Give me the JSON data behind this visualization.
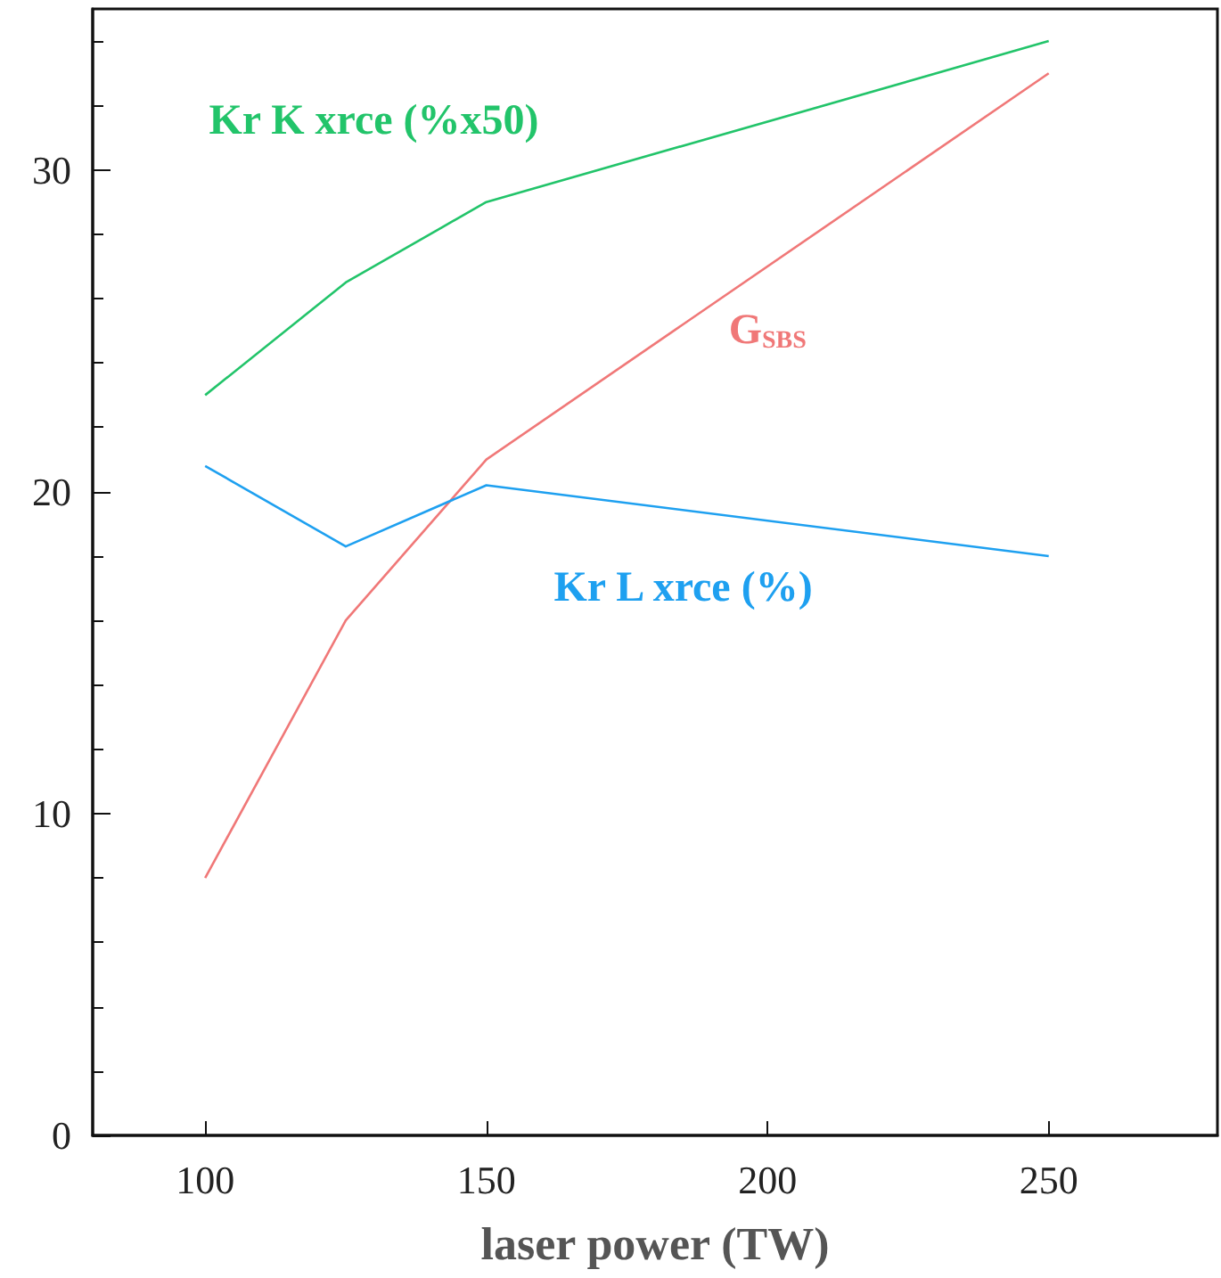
{
  "chart_data": {
    "type": "line",
    "xlabel": "laser power (TW)",
    "x": [
      100,
      125,
      150,
      250
    ],
    "series": [
      {
        "name": "Kr K xrce (%x50)",
        "color": "#22c46a",
        "values": [
          23,
          26.5,
          29,
          34
        ]
      },
      {
        "name": "G$_{SBS}$",
        "color": "#f07878",
        "values": [
          8,
          16,
          21,
          33
        ]
      },
      {
        "name": "Kr L xrce (%)",
        "color": "#1ea0f0",
        "values": [
          20.8,
          18.3,
          20.2,
          18
        ]
      }
    ],
    "xlim": [
      80,
      280
    ],
    "xticks": [
      100,
      150,
      200,
      250
    ],
    "ylim": [
      0,
      35
    ],
    "yticks": [
      0,
      10,
      20,
      30
    ],
    "grid": false,
    "legend": false,
    "marker": "none",
    "line_style": "solid"
  }
}
